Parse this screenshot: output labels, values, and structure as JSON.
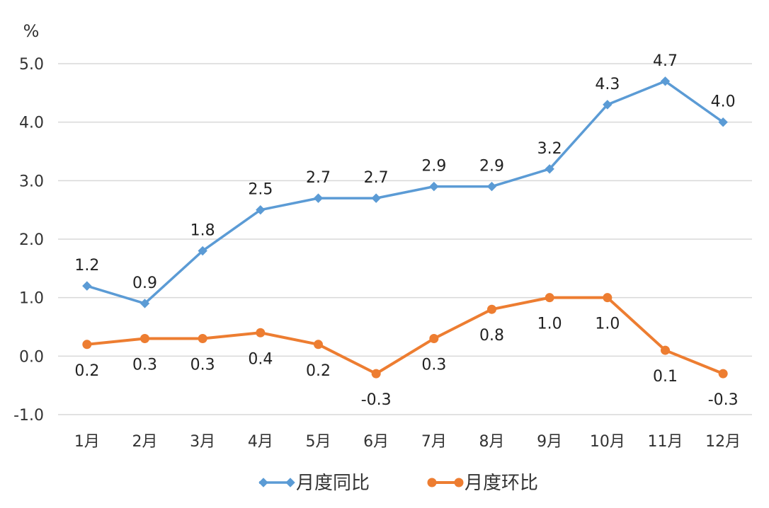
{
  "chart_data": {
    "type": "line",
    "unit_label": "%",
    "categories": [
      "1月",
      "2月",
      "3月",
      "4月",
      "5月",
      "6月",
      "7月",
      "8月",
      "9月",
      "10月",
      "11月",
      "12月"
    ],
    "ylim": [
      -1.0,
      5.0
    ],
    "yticks": [
      "-1.0",
      "0.0",
      "1.0",
      "2.0",
      "3.0",
      "4.0",
      "5.0"
    ],
    "grid": true,
    "legend_position": "bottom",
    "series": [
      {
        "name": "月度同比",
        "color": "#5b9bd5",
        "marker": "diamond",
        "values": [
          1.2,
          0.9,
          1.8,
          2.5,
          2.7,
          2.7,
          2.9,
          2.9,
          3.2,
          4.3,
          4.7,
          4.0
        ],
        "labels": [
          "1.2",
          "0.9",
          "1.8",
          "2.5",
          "2.7",
          "2.7",
          "2.9",
          "2.9",
          "3.2",
          "4.3",
          "4.7",
          "4.0"
        ]
      },
      {
        "name": "月度环比",
        "color": "#ed7d31",
        "marker": "circle",
        "values": [
          0.2,
          0.3,
          0.3,
          0.4,
          0.2,
          -0.3,
          0.3,
          0.8,
          1.0,
          1.0,
          0.1,
          -0.3
        ],
        "labels": [
          "0.2",
          "0.3",
          "0.3",
          "0.4",
          "0.2",
          "-0.3",
          "0.3",
          "0.8",
          "1.0",
          "1.0",
          "0.1",
          "-0.3"
        ]
      }
    ]
  }
}
